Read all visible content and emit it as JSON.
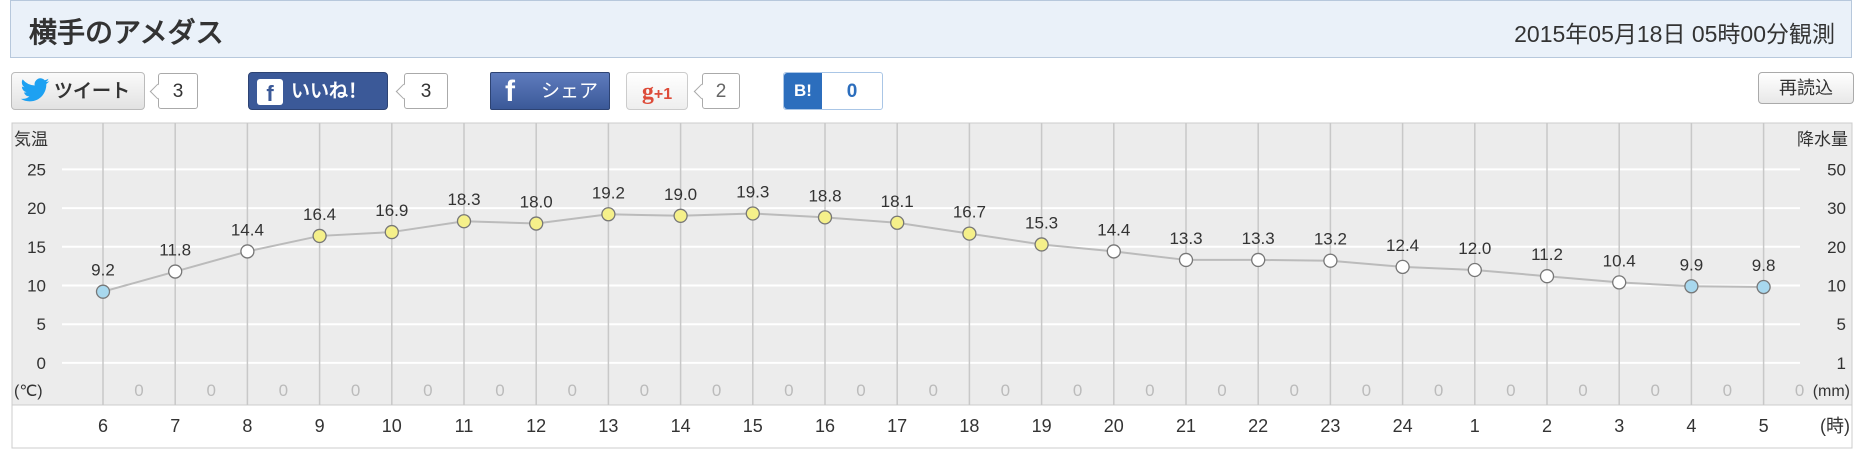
{
  "header": {
    "title": "横手のアメダス",
    "observed": "2015年05月18日 05時00分観測"
  },
  "social": {
    "tweet_label": "ツイート",
    "tweet_count": "3",
    "like_label": "いいね！",
    "like_count": "3",
    "share_label": "シェア",
    "gplus_label": "+1",
    "gplus_count": "2",
    "hatena_label": "B!",
    "hatena_count": "0",
    "reload_label": "再読込"
  },
  "colors": {
    "warm_marker": "#f5f08a",
    "cool_marker": "#a8d8ee",
    "neutral_marker": "#ffffff",
    "line": "#bbbbbb",
    "plot_bg": "#ececec",
    "grid": "#ffffff"
  },
  "chart_data": {
    "type": "line",
    "title": "",
    "ylabel_left": "気温",
    "ylabel_right": "降水量",
    "unit_left": "(℃)",
    "unit_right": "(mm)",
    "x_unit": "(時)",
    "categories": [
      "6",
      "7",
      "8",
      "9",
      "10",
      "11",
      "12",
      "13",
      "14",
      "15",
      "16",
      "17",
      "18",
      "19",
      "20",
      "21",
      "22",
      "23",
      "24",
      "1",
      "2",
      "3",
      "4",
      "5"
    ],
    "series": [
      {
        "values": [
          9.2,
          11.8,
          14.4,
          16.4,
          16.9,
          18.3,
          18.0,
          19.2,
          19.0,
          19.3,
          18.8,
          18.1,
          16.7,
          15.3,
          14.4,
          13.3,
          13.3,
          13.2,
          12.4,
          12.0,
          11.2,
          10.4,
          9.9,
          9.8
        ],
        "labels": [
          "9.2",
          "11.8",
          "14.4",
          "16.4",
          "16.9",
          "18.3",
          "18.0",
          "19.2",
          "19.0",
          "19.3",
          "18.8",
          "18.1",
          "16.7",
          "15.3",
          "14.4",
          "13.3",
          "13.3",
          "13.2",
          "12.4",
          "12.0",
          "11.2",
          "10.4",
          "9.9",
          "9.8"
        ],
        "marker": [
          "cool",
          "neutral",
          "neutral",
          "warm",
          "warm",
          "warm",
          "warm",
          "warm",
          "warm",
          "warm",
          "warm",
          "warm",
          "warm",
          "warm",
          "neutral",
          "neutral",
          "neutral",
          "neutral",
          "neutral",
          "neutral",
          "neutral",
          "neutral",
          "cool",
          "cool"
        ]
      },
      {
        "values": [
          0,
          0,
          0,
          0,
          0,
          0,
          0,
          0,
          0,
          0,
          0,
          0,
          0,
          0,
          0,
          0,
          0,
          0,
          0,
          0,
          0,
          0,
          0,
          0
        ]
      }
    ],
    "left_ticks": [
      "25",
      "20",
      "15",
      "10",
      "5",
      "0"
    ],
    "left_tick_values": [
      25,
      20,
      15,
      10,
      5,
      0
    ],
    "right_ticks": [
      "50",
      "30",
      "20",
      "10",
      "5",
      "1"
    ],
    "ylim": [
      -3.5,
      27.5
    ],
    "grid": true
  }
}
